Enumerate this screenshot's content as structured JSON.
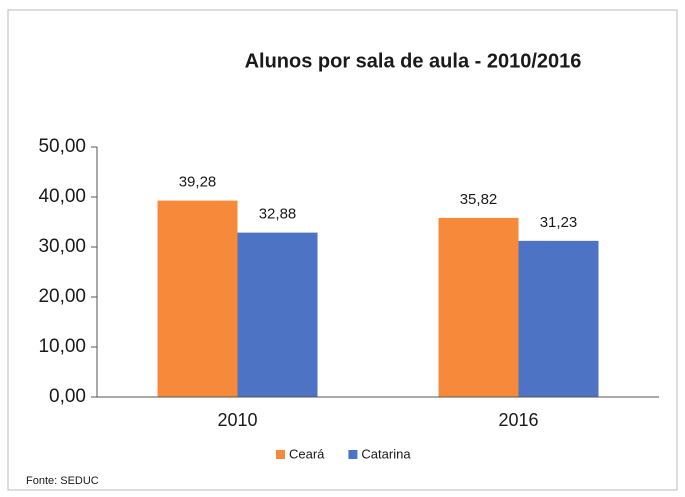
{
  "chart_data": {
    "type": "bar",
    "title": "Alunos por sala de aula - 2010/2016",
    "categories": [
      "2010",
      "2016"
    ],
    "series": [
      {
        "name": "Ceará",
        "color": "#f68a3a",
        "values": [
          39.28,
          35.82
        ],
        "value_labels": [
          "39,28",
          "35,82"
        ]
      },
      {
        "name": "Catarina",
        "color": "#4d74c4",
        "values": [
          32.88,
          31.23
        ],
        "value_labels": [
          "32,88",
          "31,23"
        ]
      }
    ],
    "ylim": [
      0,
      50
    ],
    "yticks": [
      {
        "value": 0,
        "label": "0,00"
      },
      {
        "value": 10,
        "label": "10,00"
      },
      {
        "value": 20,
        "label": "20,00"
      },
      {
        "value": 30,
        "label": "30,00"
      },
      {
        "value": 40,
        "label": "40,00"
      },
      {
        "value": 50,
        "label": "50,00"
      }
    ],
    "legend": "bottom",
    "source": "Fonte: SEDUC"
  }
}
